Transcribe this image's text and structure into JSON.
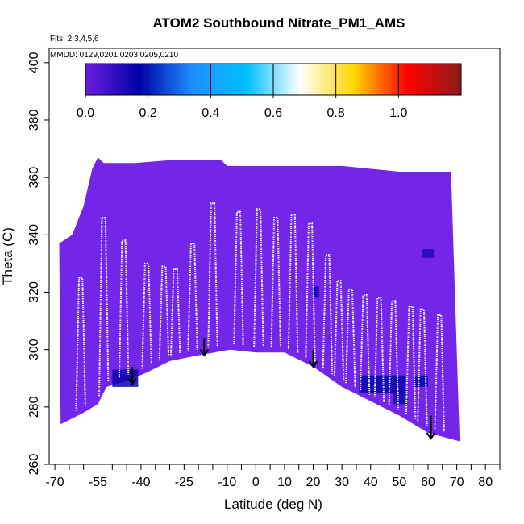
{
  "header": {
    "title": "ATOM2 Southbound Nitrate_PM1_AMS",
    "flights_note": "Flts: 2,3,4,5,6",
    "dates_note": "MMDD: 0129,0201,0203,0205,0210"
  },
  "chart_data": {
    "type": "heatmap",
    "title": "ATOM2 Southbound Nitrate_PM1_AMS",
    "xlabel": "Latitude (deg N)",
    "ylabel": "Theta (C)",
    "xlim": [
      -72,
      85
    ],
    "ylim": [
      260,
      405
    ],
    "x_ticks": [
      -70,
      -55,
      -40,
      -25,
      -10,
      0,
      10,
      20,
      30,
      40,
      50,
      60,
      70,
      80
    ],
    "x_tick_labels": [
      "-70",
      "-55",
      "-40",
      "-25",
      "-10",
      "0",
      "10",
      "20",
      "30",
      "40",
      "50",
      "60",
      "70",
      "80"
    ],
    "x_minor_ticks": [
      -65,
      -60,
      -50,
      -45,
      -35,
      -30,
      -20,
      -15,
      -5,
      5,
      15,
      25,
      35,
      45,
      55,
      65,
      75,
      85
    ],
    "y_ticks": [
      260,
      280,
      300,
      320,
      340,
      360,
      380,
      400
    ],
    "y_tick_labels": [
      "260",
      "280",
      "300",
      "320",
      "340",
      "360",
      "380",
      "400"
    ],
    "colorbar": {
      "range": [
        0.0,
        1.2
      ],
      "ticks": [
        0.0,
        0.2,
        0.4,
        0.6,
        0.8,
        1.0
      ],
      "tick_labels": [
        "0.0",
        "0.2",
        "0.4",
        "0.6",
        "0.8",
        "1.0"
      ],
      "colors": [
        "#6a1fe0",
        "#0000a8",
        "#1e90ff",
        "#00bfff",
        "#ffffff",
        "#ffd700",
        "#ff0000",
        "#8b1a1a"
      ]
    },
    "background_value": 0.04,
    "background_color": "#7326e8",
    "grid": false,
    "floor_theta": [
      [
        -68,
        274
      ],
      [
        -60,
        278
      ],
      [
        -55,
        281
      ],
      [
        -52,
        287
      ],
      [
        -45,
        289
      ],
      [
        -38,
        292
      ],
      [
        -30,
        296
      ],
      [
        -20,
        298
      ],
      [
        -9,
        300
      ],
      [
        0,
        299
      ],
      [
        10,
        299
      ],
      [
        20,
        294
      ],
      [
        30,
        287
      ],
      [
        40,
        282
      ],
      [
        50,
        277
      ],
      [
        60,
        271
      ],
      [
        71,
        268
      ]
    ],
    "ceiling_theta": [
      [
        -68.5,
        337
      ],
      [
        -64,
        340
      ],
      [
        -60,
        350
      ],
      [
        -57,
        363
      ],
      [
        -55,
        367
      ],
      [
        -53,
        365
      ],
      [
        -48,
        365
      ],
      [
        -42,
        365
      ],
      [
        -30,
        366
      ],
      [
        -12,
        366
      ],
      [
        -10,
        364
      ],
      [
        30,
        364
      ],
      [
        50,
        362
      ],
      [
        60,
        362
      ],
      [
        68,
        362
      ]
    ],
    "high_value_patches": [
      {
        "x": [
          -50,
          -41
        ],
        "theta": [
          287,
          293
        ],
        "value": 0.15
      },
      {
        "x": [
          20,
          22
        ],
        "theta": [
          318,
          322
        ],
        "value": 0.15
      },
      {
        "x": [
          36,
          52
        ],
        "theta": [
          285,
          291
        ],
        "value": 0.16
      },
      {
        "x": [
          48,
          53
        ],
        "theta": [
          281,
          286
        ],
        "value": 0.14
      },
      {
        "x": [
          55,
          60
        ],
        "theta": [
          287,
          291
        ],
        "value": 0.16
      },
      {
        "x": [
          58,
          62
        ],
        "theta": [
          332,
          335
        ],
        "value": 0.12
      }
    ],
    "arrows": [
      {
        "lat": -43,
        "theta_top": 294,
        "theta_tip": 288
      },
      {
        "lat": -18,
        "theta_top": 304,
        "theta_tip": 298
      },
      {
        "lat": 20,
        "theta_top": 300,
        "theta_tip": 294
      },
      {
        "lat": 61,
        "theta_top": 277,
        "theta_tip": 269
      }
    ],
    "profile_peaks": [
      {
        "lat": -61,
        "theta": 325
      },
      {
        "lat": -53,
        "theta": 346
      },
      {
        "lat": -46,
        "theta": 338
      },
      {
        "lat": -38,
        "theta": 330
      },
      {
        "lat": -32,
        "theta": 329
      },
      {
        "lat": -28,
        "theta": 328
      },
      {
        "lat": -22,
        "theta": 337
      },
      {
        "lat": -15,
        "theta": 351
      },
      {
        "lat": -6,
        "theta": 348
      },
      {
        "lat": 1,
        "theta": 349
      },
      {
        "lat": 7,
        "theta": 346
      },
      {
        "lat": 13,
        "theta": 347
      },
      {
        "lat": 19,
        "theta": 344
      },
      {
        "lat": 25,
        "theta": 333
      },
      {
        "lat": 29,
        "theta": 324
      },
      {
        "lat": 33,
        "theta": 321
      },
      {
        "lat": 38,
        "theta": 319
      },
      {
        "lat": 43,
        "theta": 318
      },
      {
        "lat": 48,
        "theta": 317
      },
      {
        "lat": 54,
        "theta": 315
      },
      {
        "lat": 58,
        "theta": 314
      },
      {
        "lat": 64,
        "theta": 312
      }
    ]
  }
}
